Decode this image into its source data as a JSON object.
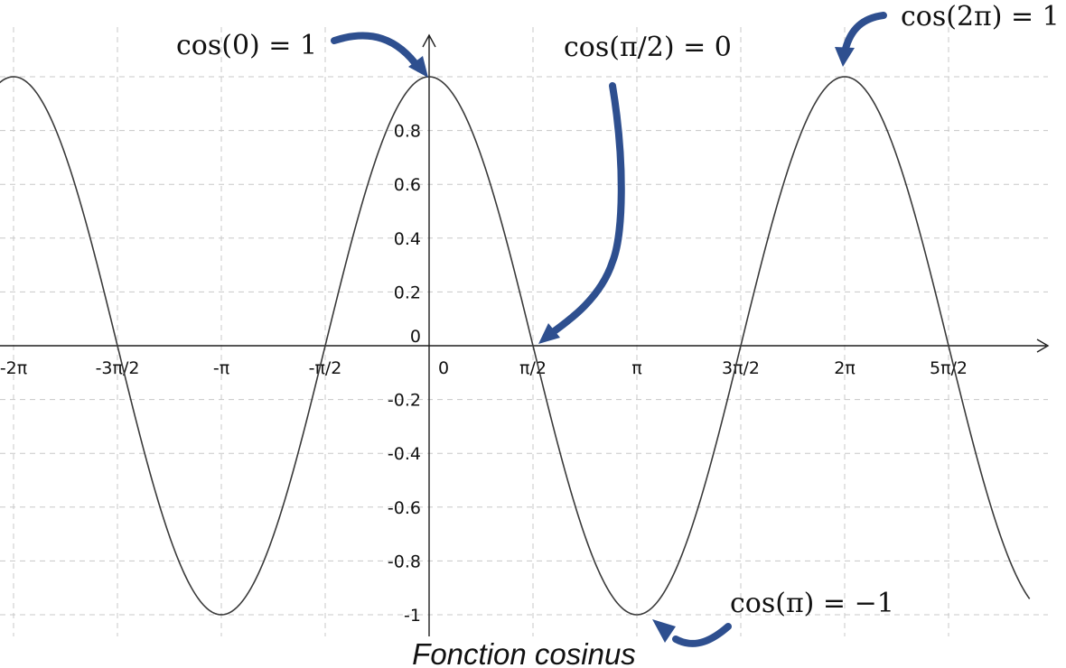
{
  "chart_data": {
    "type": "line",
    "title": "",
    "caption": "Fonction cosinus",
    "xlabel": "",
    "ylabel": "",
    "function": "cos(x)",
    "x_unit": "π",
    "xlim": [
      -2.07,
      2.89
    ],
    "ylim": [
      -1.04,
      1.15
    ],
    "grid": true,
    "x_ticks": [
      {
        "value": -2,
        "label": "-2π"
      },
      {
        "value": -1.5,
        "label": "-3π/2"
      },
      {
        "value": -1,
        "label": "-π"
      },
      {
        "value": -0.5,
        "label": "-π/2"
      },
      {
        "value": 0,
        "label": "0"
      },
      {
        "value": 0.5,
        "label": "π/2"
      },
      {
        "value": 1,
        "label": "π"
      },
      {
        "value": 1.5,
        "label": "3π/2"
      },
      {
        "value": 2,
        "label": "2π"
      },
      {
        "value": 2.5,
        "label": "5π/2"
      }
    ],
    "y_ticks": [
      {
        "value": 0.8,
        "label": "0.8"
      },
      {
        "value": 0.6,
        "label": "0.6"
      },
      {
        "value": 0.4,
        "label": "0.4"
      },
      {
        "value": 0.2,
        "label": "0.2"
      },
      {
        "value": 0,
        "label": "0"
      },
      {
        "value": -0.2,
        "label": "-0.2"
      },
      {
        "value": -0.4,
        "label": "-0.4"
      },
      {
        "value": -0.6,
        "label": "-0.6"
      },
      {
        "value": -0.8,
        "label": "-0.8"
      },
      {
        "value": -1,
        "label": "-1"
      }
    ],
    "y_grid": [
      1,
      0.8,
      0.6,
      0.4,
      0.2,
      -0.2,
      -0.4,
      -0.6,
      -0.8,
      -1
    ],
    "annotations": [
      {
        "text": "cos(0) = 1",
        "x": 0,
        "y": 1
      },
      {
        "text": "cos(π/2) = 0",
        "x": 0.5,
        "y": 0
      },
      {
        "text": "cos(2π) = 1",
        "x": 2,
        "y": 1
      },
      {
        "text": "cos(π) = −1",
        "x": 1,
        "y": -1
      }
    ],
    "colors": {
      "curve": "#3a3a3a",
      "arrows": "#2e4f8f",
      "grid": "#c8c8c8",
      "axes": "#1e1e1e"
    }
  }
}
